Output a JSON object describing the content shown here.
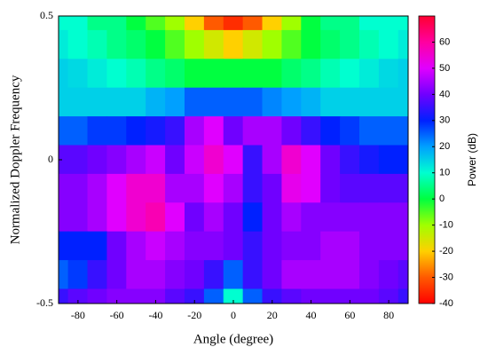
{
  "chart_data": {
    "type": "heatmap",
    "xlabel": "Angle (degree)",
    "ylabel": "Normalized Doppler Frequency",
    "colorbar_label": "Power (dB)",
    "x": [
      -90,
      -80,
      -70,
      -60,
      -50,
      -40,
      -30,
      -20,
      -10,
      0,
      10,
      20,
      30,
      40,
      50,
      60,
      70,
      80,
      90
    ],
    "y": [
      0.5,
      0.4,
      0.3,
      0.2,
      0.1,
      0,
      -0.1,
      -0.2,
      -0.3,
      -0.4,
      -0.5
    ],
    "z": [
      [
        10,
        10,
        5,
        5,
        0,
        -5,
        -10,
        -20,
        -30,
        -35,
        -30,
        -20,
        -10,
        0,
        5,
        5,
        10,
        10,
        10
      ],
      [
        12,
        10,
        8,
        5,
        3,
        0,
        -5,
        -10,
        -15,
        -20,
        -15,
        -10,
        -5,
        0,
        3,
        5,
        8,
        10,
        12
      ],
      [
        15,
        14,
        12,
        10,
        8,
        5,
        3,
        0,
        0,
        0,
        0,
        0,
        3,
        5,
        8,
        10,
        12,
        14,
        15
      ],
      [
        15,
        15,
        15,
        15,
        15,
        18,
        20,
        25,
        25,
        25,
        25,
        22,
        20,
        18,
        15,
        15,
        15,
        15,
        15
      ],
      [
        25,
        25,
        28,
        28,
        30,
        32,
        35,
        45,
        50,
        40,
        45,
        45,
        40,
        35,
        30,
        28,
        25,
        25,
        25
      ],
      [
        38,
        38,
        40,
        42,
        45,
        48,
        40,
        48,
        55,
        50,
        35,
        45,
        55,
        50,
        40,
        35,
        32,
        30,
        30
      ],
      [
        42,
        42,
        45,
        50,
        55,
        55,
        45,
        45,
        50,
        45,
        35,
        40,
        52,
        50,
        40,
        38,
        38,
        38,
        38
      ],
      [
        42,
        42,
        45,
        50,
        55,
        58,
        50,
        40,
        45,
        40,
        30,
        40,
        45,
        42,
        42,
        42,
        42,
        42,
        42
      ],
      [
        30,
        30,
        30,
        40,
        45,
        48,
        45,
        42,
        42,
        40,
        35,
        40,
        42,
        42,
        45,
        45,
        42,
        42,
        42
      ],
      [
        25,
        28,
        35,
        40,
        45,
        45,
        42,
        40,
        35,
        25,
        35,
        40,
        45,
        45,
        45,
        45,
        42,
        40,
        38
      ],
      [
        35,
        38,
        40,
        42,
        42,
        42,
        38,
        35,
        25,
        10,
        25,
        35,
        38,
        40,
        40,
        40,
        40,
        38,
        35
      ]
    ],
    "xlim": [
      -90,
      90
    ],
    "ylim": [
      -0.5,
      0.5
    ],
    "zlim": [
      -40,
      70
    ],
    "xticks": [
      -80,
      -60,
      -40,
      -20,
      0,
      20,
      40,
      60,
      80
    ],
    "yticks": [
      -0.5,
      0,
      0.5
    ],
    "zticks": [
      -40,
      -30,
      -20,
      -10,
      0,
      10,
      20,
      30,
      40,
      50,
      60
    ],
    "colormap": [
      "#ff0000",
      "#ff5a00",
      "#ffd000",
      "#a0ff00",
      "#00ff40",
      "#00ffd0",
      "#00a0ff",
      "#0020ff",
      "#7000ff",
      "#e000ff",
      "#ff00a0",
      "#ff0030"
    ]
  }
}
